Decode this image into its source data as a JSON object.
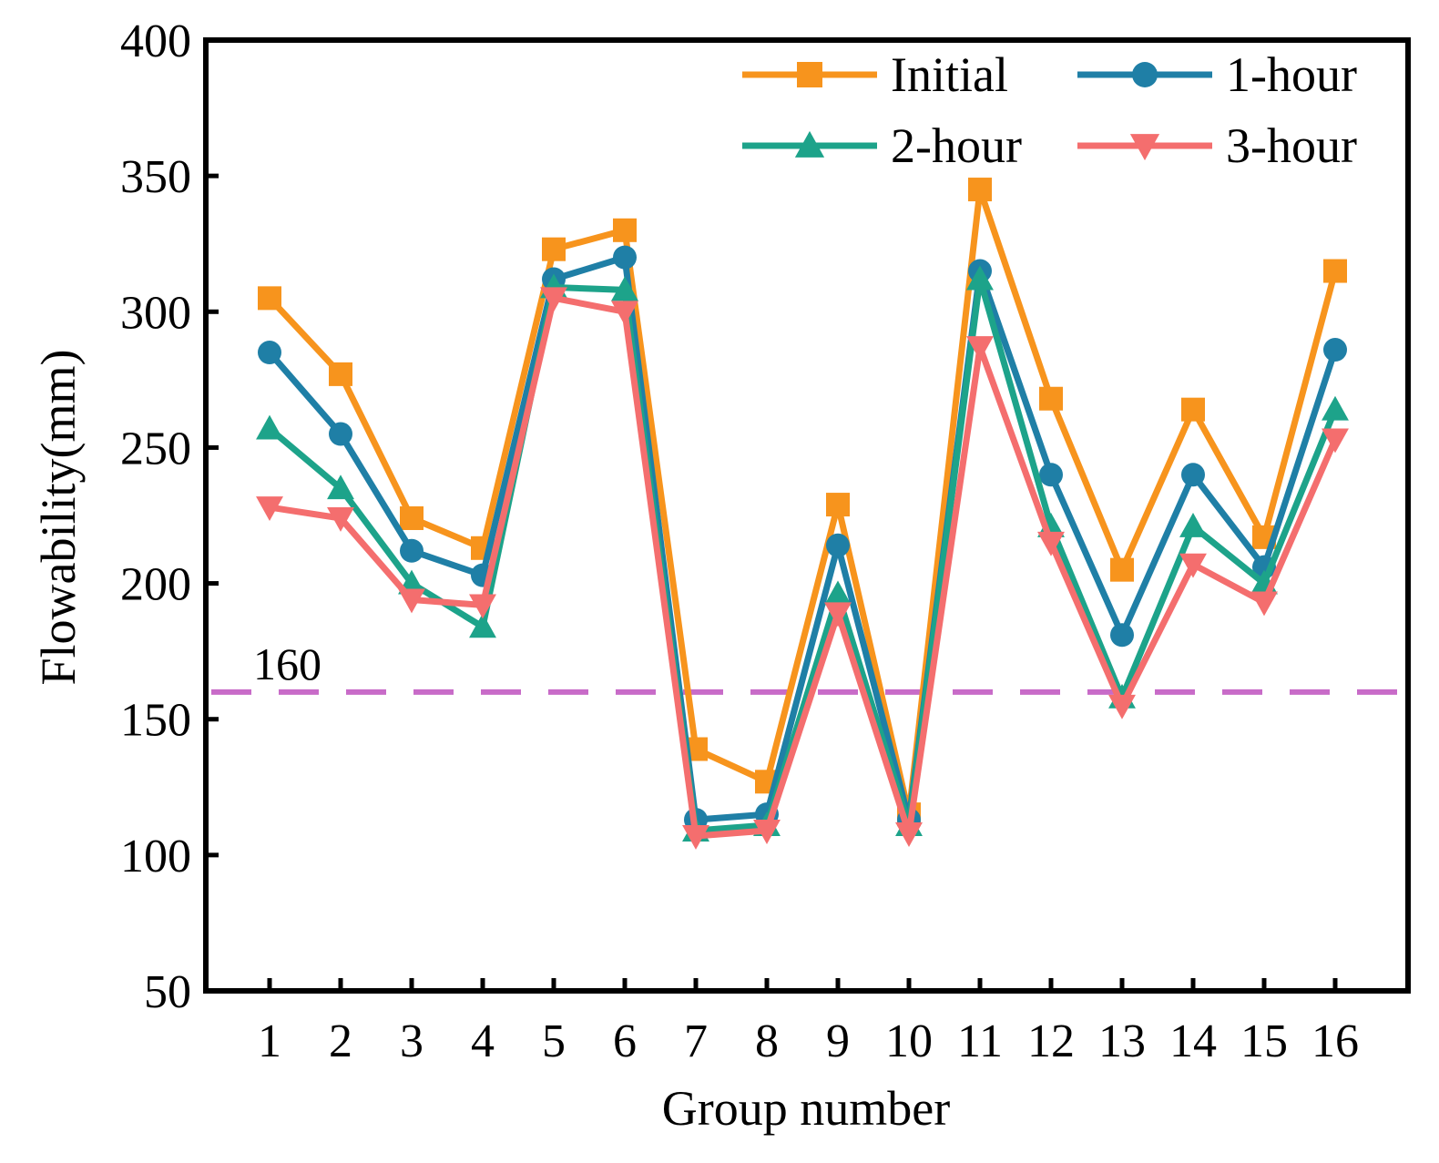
{
  "chart_data": {
    "type": "line",
    "xlabel": "Group number",
    "ylabel": "Flowability(mm)",
    "ylim": [
      50,
      400
    ],
    "yticks": [
      50,
      100,
      150,
      200,
      250,
      300,
      350,
      400
    ],
    "categories": [
      "1",
      "2",
      "3",
      "4",
      "5",
      "6",
      "7",
      "8",
      "9",
      "10",
      "11",
      "12",
      "13",
      "14",
      "15",
      "16"
    ],
    "series": [
      {
        "name": "Initial",
        "color": "#F7941D",
        "marker": "square",
        "values": [
          305,
          277,
          224,
          213,
          323,
          330,
          139,
          127,
          229,
          115,
          345,
          268,
          205,
          264,
          217,
          315
        ]
      },
      {
        "name": "1-hour",
        "color": "#1F7FA6",
        "marker": "circle",
        "values": [
          285,
          255,
          212,
          203,
          312,
          320,
          113,
          115,
          214,
          113,
          315,
          240,
          181,
          240,
          206,
          286
        ]
      },
      {
        "name": "2-hour",
        "color": "#1DA38A",
        "marker": "triangle-up",
        "values": [
          257,
          235,
          200,
          184,
          309,
          308,
          109,
          111,
          196,
          111,
          312,
          221,
          158,
          221,
          200,
          264
        ]
      },
      {
        "name": "3-hour",
        "color": "#F46E6E",
        "marker": "triangle-down",
        "values": [
          228,
          224,
          194,
          192,
          305,
          300,
          107,
          109,
          189,
          108,
          287,
          215,
          155,
          207,
          193,
          253
        ]
      }
    ],
    "reference_line": {
      "value": 160,
      "label": "160",
      "color": "#C86BC8",
      "style": "dashed"
    },
    "legend": {
      "position": "top-right",
      "columns": 2
    }
  }
}
